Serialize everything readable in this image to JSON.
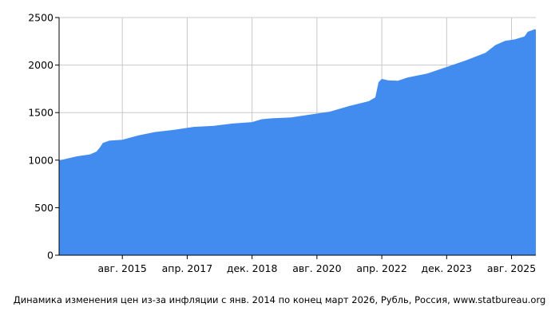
{
  "chart_data": {
    "type": "area",
    "title": "",
    "xlabel": "",
    "ylabel": "",
    "x_start": "2014-01",
    "x_end": "2026-03",
    "ylim": [
      0,
      2500
    ],
    "yticks": [
      0,
      500,
      1000,
      1500,
      2000,
      2500
    ],
    "ytick_labels": [
      "0",
      "500",
      "1000",
      "1500",
      "2000",
      "2500"
    ],
    "xticks": [
      {
        "date": "2015-08",
        "label": "авг. 2015"
      },
      {
        "date": "2017-04",
        "label": "апр. 2017"
      },
      {
        "date": "2018-12",
        "label": "дек. 2018"
      },
      {
        "date": "2020-08",
        "label": "авг. 2020"
      },
      {
        "date": "2022-04",
        "label": "апр. 2022"
      },
      {
        "date": "2023-12",
        "label": "дек. 2023"
      },
      {
        "date": "2025-08",
        "label": "авг. 2025"
      }
    ],
    "grid": true,
    "legend": "none",
    "color": "#428bef",
    "series": [
      {
        "points": [
          [
            "2014-01",
            1000
          ],
          [
            "2014-06",
            1040
          ],
          [
            "2014-10",
            1060
          ],
          [
            "2014-12",
            1090
          ],
          [
            "2015-01",
            1130
          ],
          [
            "2015-02",
            1180
          ],
          [
            "2015-04",
            1205
          ],
          [
            "2015-08",
            1215
          ],
          [
            "2016-01",
            1260
          ],
          [
            "2016-06",
            1295
          ],
          [
            "2016-12",
            1320
          ],
          [
            "2017-06",
            1350
          ],
          [
            "2017-12",
            1360
          ],
          [
            "2018-06",
            1385
          ],
          [
            "2018-12",
            1400
          ],
          [
            "2019-03",
            1430
          ],
          [
            "2019-06",
            1440
          ],
          [
            "2019-12",
            1450
          ],
          [
            "2020-06",
            1480
          ],
          [
            "2020-12",
            1510
          ],
          [
            "2021-06",
            1570
          ],
          [
            "2021-12",
            1620
          ],
          [
            "2022-02",
            1660
          ],
          [
            "2022-03",
            1820
          ],
          [
            "2022-04",
            1855
          ],
          [
            "2022-06",
            1840
          ],
          [
            "2022-09",
            1835
          ],
          [
            "2022-12",
            1870
          ],
          [
            "2023-06",
            1910
          ],
          [
            "2023-12",
            1980
          ],
          [
            "2024-06",
            2050
          ],
          [
            "2024-12",
            2130
          ],
          [
            "2025-03",
            2210
          ],
          [
            "2025-06",
            2255
          ],
          [
            "2025-09",
            2270
          ],
          [
            "2025-12",
            2300
          ],
          [
            "2026-01",
            2350
          ],
          [
            "2026-03",
            2375
          ]
        ]
      }
    ]
  },
  "caption": "Динамика изменения цен из-за инфляции с янв. 2014 по конец март 2026, Рубль, Россия, www.statbureau.org"
}
